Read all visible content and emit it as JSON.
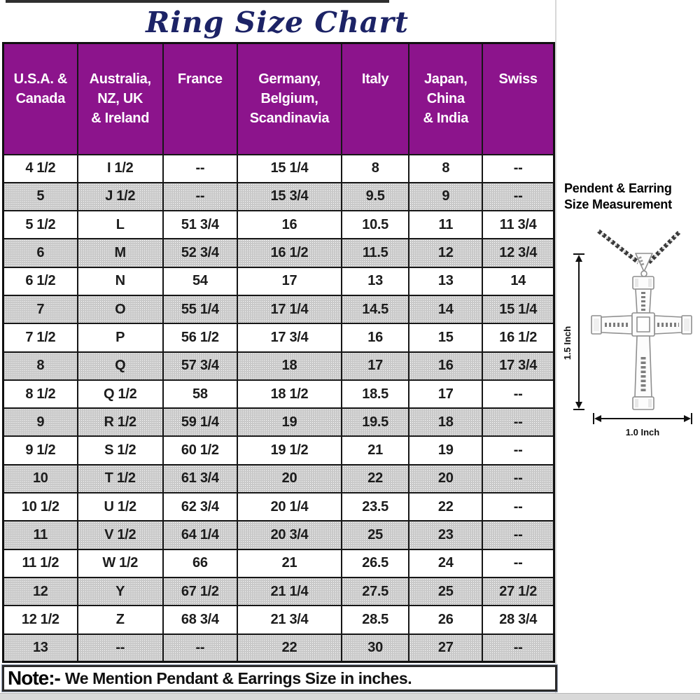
{
  "title": "Ring Size Chart",
  "table": {
    "headers": [
      "U.S.A. &\nCanada",
      "Australia,\nNZ, UK\n& Ireland",
      "France",
      "Germany,\nBelgium,\nScandinavia",
      "Italy",
      "Japan,\nChina\n& India",
      "Swiss"
    ],
    "rows": [
      [
        "4 1/2",
        "I 1/2",
        "--",
        "15 1/4",
        "8",
        "8",
        "--"
      ],
      [
        "5",
        "J 1/2",
        "--",
        "15 3/4",
        "9.5",
        "9",
        "--"
      ],
      [
        "5 1/2",
        "L",
        "51 3/4",
        "16",
        "10.5",
        "11",
        "11 3/4"
      ],
      [
        "6",
        "M",
        "52 3/4",
        "16 1/2",
        "11.5",
        "12",
        "12 3/4"
      ],
      [
        "6 1/2",
        "N",
        "54",
        "17",
        "13",
        "13",
        "14"
      ],
      [
        "7",
        "O",
        "55 1/4",
        "17 1/4",
        "14.5",
        "14",
        "15 1/4"
      ],
      [
        "7 1/2",
        "P",
        "56 1/2",
        "17 3/4",
        "16",
        "15",
        "16 1/2"
      ],
      [
        "8",
        "Q",
        "57 3/4",
        "18",
        "17",
        "16",
        "17 3/4"
      ],
      [
        "8 1/2",
        "Q 1/2",
        "58",
        "18 1/2",
        "18.5",
        "17",
        "--"
      ],
      [
        "9",
        "R 1/2",
        "59 1/4",
        "19",
        "19.5",
        "18",
        "--"
      ],
      [
        "9 1/2",
        "S 1/2",
        "60 1/2",
        "19 1/2",
        "21",
        "19",
        "--"
      ],
      [
        "10",
        "T 1/2",
        "61 3/4",
        "20",
        "22",
        "20",
        "--"
      ],
      [
        "10 1/2",
        "U 1/2",
        "62 3/4",
        "20 1/4",
        "23.5",
        "22",
        "--"
      ],
      [
        "11",
        "V 1/2",
        "64 1/4",
        "20 3/4",
        "25",
        "23",
        "--"
      ],
      [
        "11 1/2",
        "W 1/2",
        "66",
        "21",
        "26.5",
        "24",
        "--"
      ],
      [
        "12",
        "Y",
        "67 1/2",
        "21 1/4",
        "27.5",
        "25",
        "27 1/2"
      ],
      [
        "12 1/2",
        "Z",
        "68 3/4",
        "21 3/4",
        "28.5",
        "26",
        "28 3/4"
      ],
      [
        "13",
        "--",
        "--",
        "22",
        "30",
        "27",
        "--"
      ]
    ]
  },
  "note": {
    "label": "Note:-",
    "text": "We Mention Pendant & Earrings Size in inches."
  },
  "measurement_panel": {
    "heading": "Pendent & Earring\nSize Measurement",
    "height_label": "1.5 Inch",
    "width_label": "1.0 Inch"
  },
  "colors": {
    "header_bg": "#8c148c",
    "header_text": "#ffffff",
    "row_alt_bg": "#c9c9c9",
    "title_color": "#1c2366",
    "border": "#161616"
  }
}
